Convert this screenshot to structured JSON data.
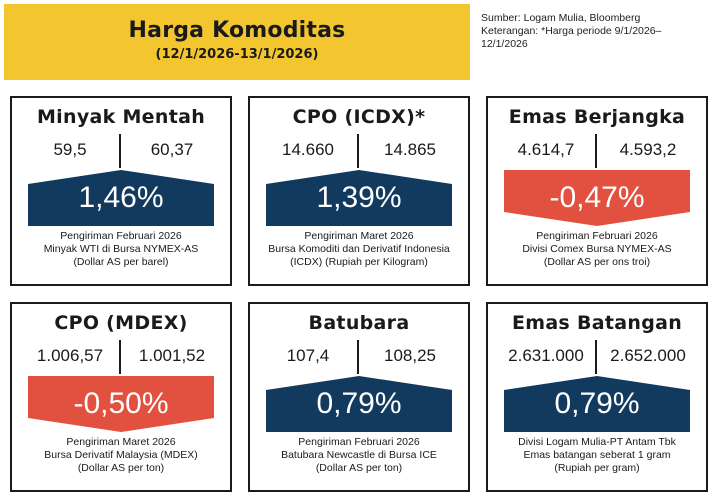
{
  "header": {
    "title": "Harga Komoditas",
    "period": "(12/1/2026-13/1/2026)"
  },
  "source": {
    "line1": "Sumber: Logam Mulia, Bloomberg",
    "line2": "Keterangan: *Harga periode 9/1/2026–",
    "line3": "12/1/2026"
  },
  "colors": {
    "banner": "#f3c52f",
    "positive": "#123a5e",
    "negative": "#e2503f",
    "border": "#1b1b1b"
  },
  "cards": [
    {
      "name": "Minyak Mentah",
      "v1": "59,5",
      "v2": "60,37",
      "change": "1,46%",
      "dir": "up",
      "note1": "Pengiriman Februari 2026",
      "note2": "Minyak WTI di Bursa NYMEX-AS",
      "note3": "(Dollar AS per barel)"
    },
    {
      "name": "CPO (ICDX)*",
      "v1": "14.660",
      "v2": "14.865",
      "change": "1,39%",
      "dir": "up",
      "note1": "Pengiriman Maret 2026",
      "note2": "Bursa Komoditi dan Derivatif Indonesia",
      "note3": "(ICDX) (Rupiah per Kilogram)"
    },
    {
      "name": "Emas Berjangka",
      "v1": "4.614,7",
      "v2": "4.593,2",
      "change": "-0,47%",
      "dir": "down",
      "note1": "Pengiriman Februari 2026",
      "note2": "Divisi Comex Bursa NYMEX-AS",
      "note3": "(Dollar AS per ons troi)"
    },
    {
      "name": "CPO (MDEX)",
      "v1": "1.006,57",
      "v2": "1.001,52",
      "change": "-0,50%",
      "dir": "down",
      "note1": "Pengiriman Maret 2026",
      "note2": "Bursa Derivatif Malaysia (MDEX)",
      "note3": "(Dollar AS per ton)"
    },
    {
      "name": "Batubara",
      "v1": "107,4",
      "v2": "108,25",
      "change": "0,79%",
      "dir": "up",
      "note1": "Pengiriman Februari 2026",
      "note2": "Batubara Newcastle di Bursa ICE",
      "note3": "(Dollar AS per ton)"
    },
    {
      "name": "Emas Batangan",
      "v1": "2.631.000",
      "v2": "2.652.000",
      "change": "0,79%",
      "dir": "up",
      "note1": "Divisi Logam Mulia-PT Antam Tbk",
      "note2": "Emas batangan seberat 1 gram",
      "note3": "(Rupiah per gram)"
    }
  ]
}
